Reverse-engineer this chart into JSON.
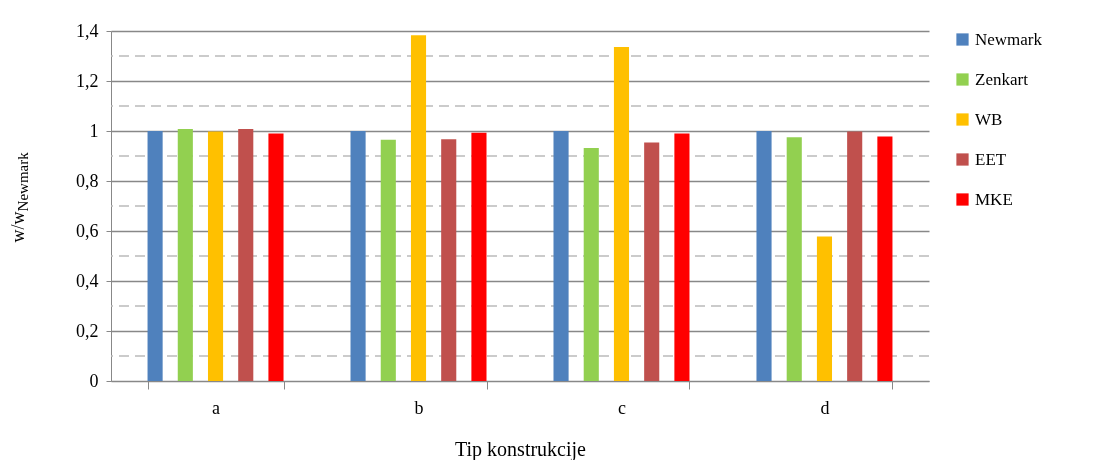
{
  "chart_data": {
    "type": "bar",
    "xlabel": "Tip konstrukcije",
    "ylabel": "w/w$_{Newmark}$",
    "categories": [
      "a",
      "b",
      "c",
      "d"
    ],
    "series": [
      {
        "name": "Newmark",
        "color": "#4f81bd",
        "values": [
          1.0,
          1.0,
          1.0,
          1.0
        ]
      },
      {
        "name": "Zenkart",
        "color": "#92d050",
        "values": [
          1.008,
          0.965,
          0.932,
          0.975
        ]
      },
      {
        "name": "WB",
        "color": "#ffc000",
        "values": [
          0.998,
          1.383,
          1.336,
          0.578
        ]
      },
      {
        "name": "EET",
        "color": "#c0504d",
        "values": [
          1.008,
          0.967,
          0.954,
          0.998
        ]
      },
      {
        "name": "MKE",
        "color": "#ff0000",
        "values": [
          0.99,
          0.993,
          0.99,
          0.978
        ]
      }
    ],
    "ylim": [
      0,
      1.4
    ],
    "yticks": [
      0,
      {
        "value": 0.1,
        "label": null
      },
      {
        "value": 0.2,
        "label": "0,2"
      },
      {
        "value": 0.3,
        "label": null
      },
      {
        "value": 0.4,
        "label": "0,4"
      },
      {
        "value": 0.5,
        "label": null
      },
      {
        "value": 0.6,
        "label": "0,6"
      },
      {
        "value": 0.7,
        "label": null
      },
      {
        "value": 0.8,
        "label": "0,8"
      },
      {
        "value": 0.9,
        "label": null
      },
      1,
      {
        "value": 1.1,
        "label": null
      },
      {
        "value": 1.2,
        "label": "1,2"
      },
      {
        "value": 1.3,
        "label": null
      },
      {
        "value": 1.4,
        "label": "1,4"
      }
    ],
    "grid": true,
    "legend": "right"
  }
}
